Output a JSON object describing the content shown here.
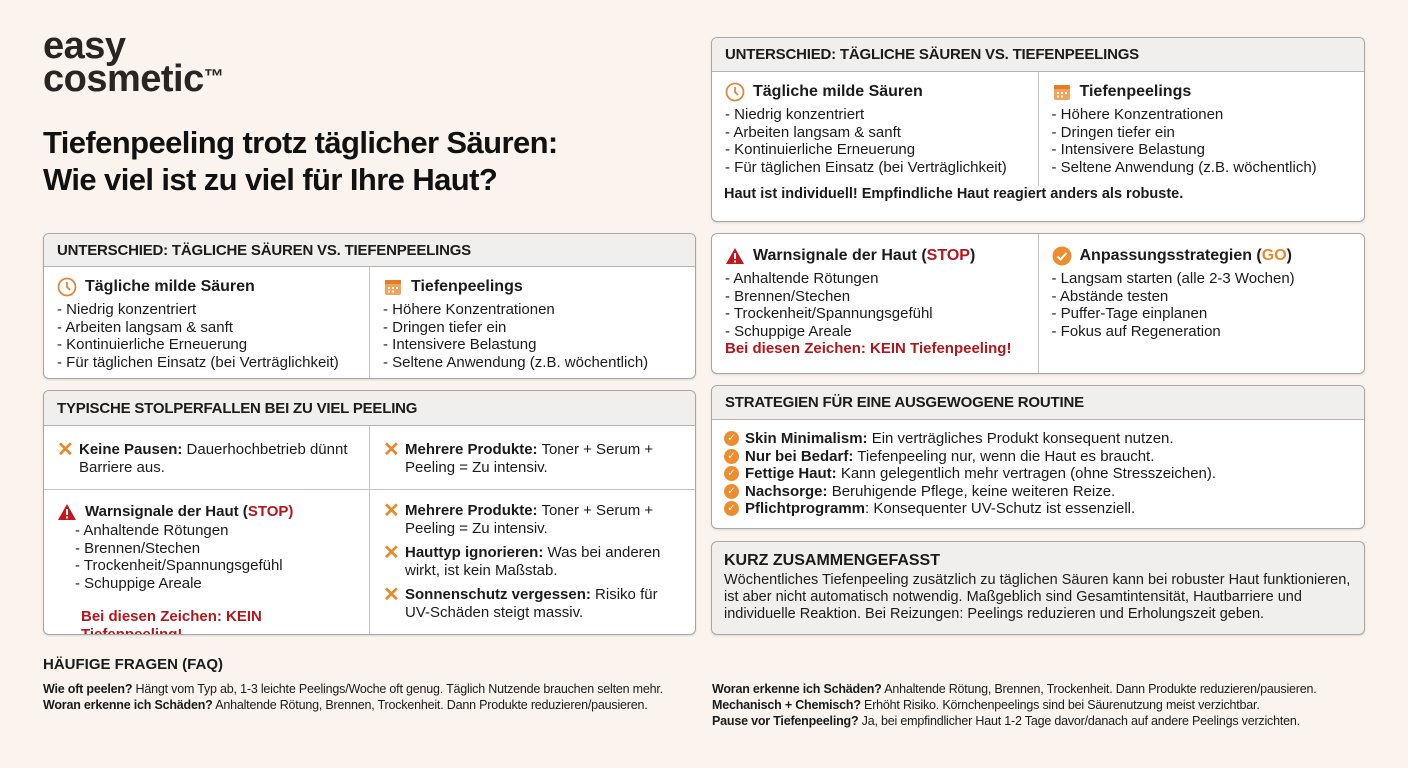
{
  "logo": {
    "line1": "easy",
    "line2": "cosmetic",
    "tm": "™"
  },
  "title": {
    "line1": "Tiefenpeeling trotz täglicher Säuren:",
    "line2": "Wie viel ist zu viel für Ihre Haut?"
  },
  "colors": {
    "accent": "#ef8d2e",
    "stop": "#b3161b",
    "header_bg": "#f0efee",
    "background": "#fbf4ee"
  },
  "comparison": {
    "heading": "UNTERSCHIED: TÄGLICHE SÄUREN VS. TIEFENPEELINGS",
    "daily": {
      "icon": "clock-icon",
      "title": "Tägliche milde Säuren",
      "items": [
        "- Niedrig konzentriert",
        "- Arbeiten langsam & sanft",
        "- Kontinuierliche Erneuerung",
        "- Für täglichen Einsatz (bei Verträglichkeit)"
      ]
    },
    "deep": {
      "icon": "calendar-icon",
      "title": "Tiefenpeelings",
      "items": [
        "- Höhere Konzentrationen",
        "- Dringen tiefer ein",
        "- Intensivere Belastung",
        "- Seltene Anwendung (z.B. wöchentlich)"
      ]
    },
    "note": "Haut ist individuell! Empfindliche Haut reagiert anders als robuste."
  },
  "pitfalls": {
    "heading": "TYPISCHE STOLPERFALLEN BEI ZU VIEL PEELING",
    "items": [
      {
        "bold": "Keine Pausen:",
        "text": " Dauerhochbetrieb dünnt Barriere aus."
      },
      {
        "bold": "Mehrere Produkte:",
        "text": " Toner + Serum + Peeling = Zu intensiv."
      },
      {
        "bold": "Mehrere Produkte:",
        "text": " Toner + Serum + Peeling = Zu intensiv."
      },
      {
        "bold": "Hauttyp ignorieren:",
        "text": " Was bei anderen wirkt, ist kein Maßstab."
      },
      {
        "bold": "Sonnenschutz vergessen:",
        "text": " Risiko für UV-Schäden steigt massiv."
      }
    ]
  },
  "warning": {
    "title": "Warnsignale der Haut (",
    "stop": "STOP",
    "close": ")",
    "items": [
      "- Anhaltende Rötungen",
      "- Brennen/Stechen",
      "- Trockenheit/Spannungsgefühl",
      "- Schuppige Areale"
    ],
    "alert": "Bei diesen Zeichen: KEIN Tiefenpeeling!"
  },
  "adapt": {
    "title": "Anpassungsstrategien (",
    "go": "GO",
    "close": ")",
    "items": [
      "- Langsam starten (alle 2-3 Wochen)",
      "- Abstände testen",
      "- Puffer-Tage einplanen",
      "- Fokus auf Regeneration"
    ]
  },
  "strategies": {
    "heading": "STRATEGIEN FÜR EINE AUSGEWOGENE ROUTINE",
    "items": [
      {
        "bold": "Skin Minimalism:",
        "text": " Ein verträgliches Produkt konsequent nutzen."
      },
      {
        "bold": "Nur bei Bedarf:",
        "text": " Tiefenpeeling nur, wenn die Haut es braucht."
      },
      {
        "bold": "Fettige Haut:",
        "text": " Kann gelegentlich mehr vertragen (ohne Stresszeichen)."
      },
      {
        "bold": "Nachsorge:",
        "text": " Beruhigende Pflege, keine weiteren Reize."
      },
      {
        "bold": "Pflichtprogramm",
        "text": ": Konsequenter UV-Schutz ist essenziell."
      }
    ]
  },
  "summary": {
    "heading": "KURZ ZUSAMMENGEFASST",
    "text": "Wöchentliches Tiefenpeeling zusätzlich zu täglichen Säuren kann bei robuster Haut funktionieren, ist aber nicht automatisch notwendig. Maßgeblich sind Gesamtintensität, Hautbarriere und individuelle Reaktion. Bei Reizungen: Peelings reduzieren und Erholungszeit geben."
  },
  "faq": {
    "heading": "HÄUFIGE FRAGEN (FAQ)",
    "items": [
      {
        "q": "Wie oft peelen?",
        "a": " Hängt vom Typ ab, 1-3 leichte Peelings/Woche oft genug. Täglich Nutzende brauchen selten mehr."
      },
      {
        "q": "Woran erkenne ich Schäden?",
        "a": " Anhaltende Rötung, Brennen, Trockenheit. Dann Produkte reduzieren/pausieren."
      },
      {
        "q": "Woran erkenne ich Schäden?",
        "a": " Anhaltende Rötung, Brennen, Trockenheit. Dann Produkte reduzieren/pausieren."
      },
      {
        "q": "Mechanisch + Chemisch?",
        "a": " Erhöht Risiko. Körnchenpeelings sind bei Säurenutzung meist verzichtbar."
      },
      {
        "q": "Pause vor Tiefenpeeling?",
        "a": " Ja, bei empfindlicher Haut 1-2 Tage davor/danach auf andere Peelings verzichten."
      }
    ]
  }
}
